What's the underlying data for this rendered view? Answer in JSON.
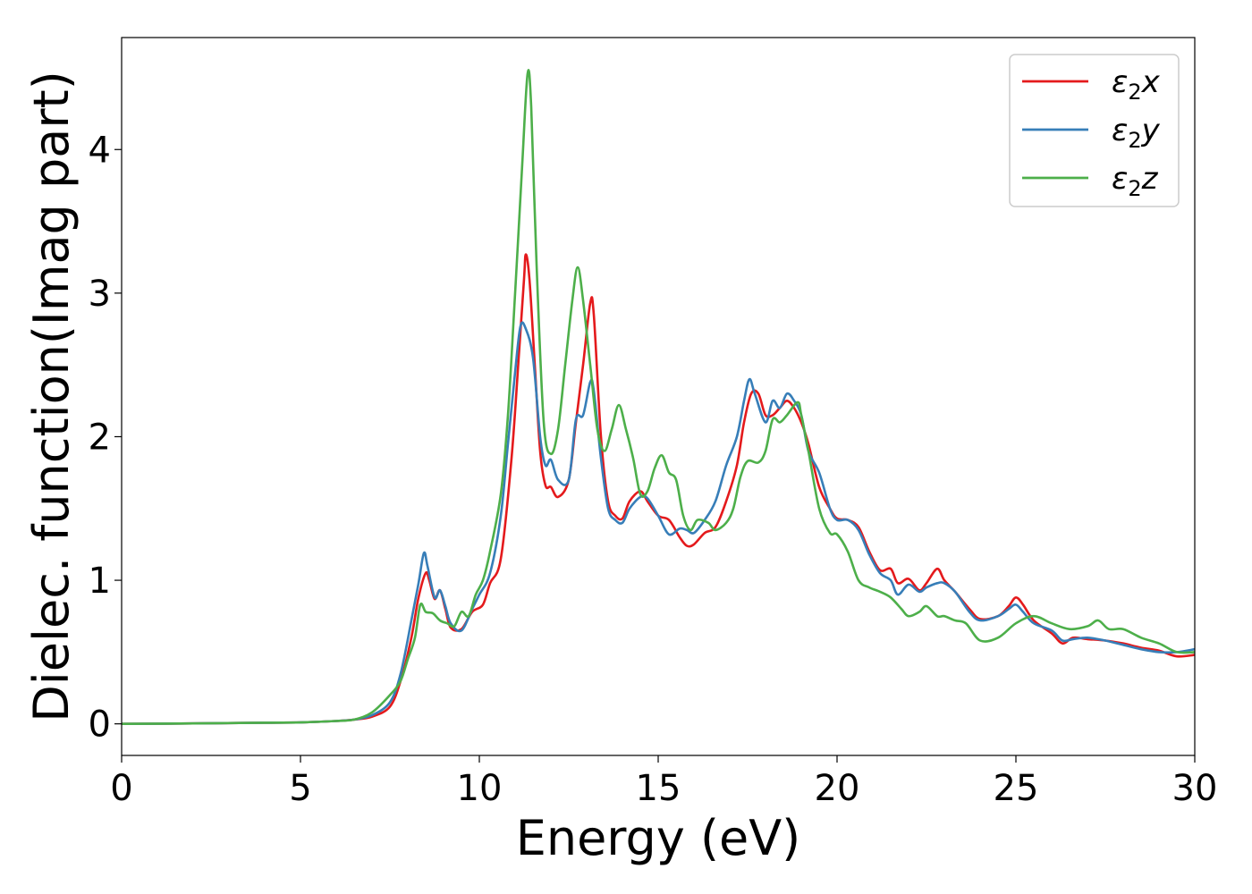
{
  "chart_data": {
    "type": "line",
    "title": "",
    "xlabel": "Energy (eV)",
    "ylabel": "Dielec. function(Imag part)",
    "xlim": [
      0,
      30
    ],
    "ylim": [
      -0.22,
      4.78
    ],
    "xticks": [
      0,
      5,
      10,
      15,
      20,
      25,
      30
    ],
    "xtick_labels": [
      "0",
      "5",
      "10",
      "15",
      "20",
      "25",
      "30"
    ],
    "yticks": [
      0,
      1,
      2,
      3,
      4
    ],
    "ytick_labels": [
      "0",
      "1",
      "2",
      "3",
      "4"
    ],
    "grid": false,
    "legend_position": "top-right",
    "series": [
      {
        "name": "ε₂x",
        "legend_base": "ε",
        "legend_sub": "2",
        "legend_var": "x",
        "color": "#e41a1c",
        "points": [
          [
            0,
            0
          ],
          [
            2,
            0.003
          ],
          [
            4,
            0.008
          ],
          [
            5,
            0.01
          ],
          [
            6,
            0.02
          ],
          [
            6.5,
            0.03
          ],
          [
            7,
            0.05
          ],
          [
            7.5,
            0.12
          ],
          [
            7.8,
            0.3
          ],
          [
            8.1,
            0.6
          ],
          [
            8.3,
            0.88
          ],
          [
            8.5,
            1.05
          ],
          [
            8.6,
            1.0
          ],
          [
            8.75,
            0.87
          ],
          [
            8.9,
            0.93
          ],
          [
            9.05,
            0.8
          ],
          [
            9.2,
            0.67
          ],
          [
            9.5,
            0.66
          ],
          [
            9.8,
            0.78
          ],
          [
            10.1,
            0.83
          ],
          [
            10.3,
            0.98
          ],
          [
            10.6,
            1.15
          ],
          [
            10.9,
            1.85
          ],
          [
            11.1,
            2.55
          ],
          [
            11.25,
            3.1
          ],
          [
            11.3,
            3.27
          ],
          [
            11.4,
            3.1
          ],
          [
            11.55,
            2.5
          ],
          [
            11.7,
            1.9
          ],
          [
            11.85,
            1.66
          ],
          [
            12.0,
            1.65
          ],
          [
            12.2,
            1.58
          ],
          [
            12.5,
            1.7
          ],
          [
            12.7,
            2.1
          ],
          [
            12.9,
            2.5
          ],
          [
            13.1,
            2.93
          ],
          [
            13.2,
            2.85
          ],
          [
            13.4,
            2.0
          ],
          [
            13.6,
            1.55
          ],
          [
            13.8,
            1.45
          ],
          [
            14.0,
            1.43
          ],
          [
            14.2,
            1.55
          ],
          [
            14.5,
            1.62
          ],
          [
            14.7,
            1.55
          ],
          [
            15.0,
            1.45
          ],
          [
            15.3,
            1.42
          ],
          [
            15.6,
            1.3
          ],
          [
            15.8,
            1.24
          ],
          [
            16.0,
            1.25
          ],
          [
            16.3,
            1.33
          ],
          [
            16.6,
            1.37
          ],
          [
            16.9,
            1.55
          ],
          [
            17.2,
            1.8
          ],
          [
            17.4,
            2.1
          ],
          [
            17.6,
            2.3
          ],
          [
            17.8,
            2.3
          ],
          [
            18.0,
            2.15
          ],
          [
            18.2,
            2.15
          ],
          [
            18.4,
            2.2
          ],
          [
            18.6,
            2.25
          ],
          [
            18.8,
            2.2
          ],
          [
            19.0,
            2.1
          ],
          [
            19.2,
            1.95
          ],
          [
            19.5,
            1.65
          ],
          [
            19.8,
            1.5
          ],
          [
            20.0,
            1.43
          ],
          [
            20.3,
            1.42
          ],
          [
            20.6,
            1.37
          ],
          [
            20.9,
            1.2
          ],
          [
            21.2,
            1.07
          ],
          [
            21.5,
            1.08
          ],
          [
            21.7,
            0.98
          ],
          [
            22.0,
            1.01
          ],
          [
            22.3,
            0.93
          ],
          [
            22.5,
            0.98
          ],
          [
            22.8,
            1.08
          ],
          [
            23.0,
            1.0
          ],
          [
            23.3,
            0.92
          ],
          [
            23.7,
            0.8
          ],
          [
            24.0,
            0.73
          ],
          [
            24.5,
            0.75
          ],
          [
            24.8,
            0.82
          ],
          [
            25.0,
            0.88
          ],
          [
            25.2,
            0.83
          ],
          [
            25.5,
            0.72
          ],
          [
            26.0,
            0.63
          ],
          [
            26.3,
            0.56
          ],
          [
            26.6,
            0.6
          ],
          [
            27.0,
            0.59
          ],
          [
            27.5,
            0.58
          ],
          [
            28.0,
            0.56
          ],
          [
            28.5,
            0.53
          ],
          [
            29.0,
            0.51
          ],
          [
            29.5,
            0.47
          ],
          [
            30,
            0.48
          ]
        ]
      },
      {
        "name": "ε₂y",
        "legend_base": "ε",
        "legend_sub": "2",
        "legend_var": "y",
        "color": "#377eb8",
        "points": [
          [
            0,
            0
          ],
          [
            2,
            0.003
          ],
          [
            4,
            0.008
          ],
          [
            5,
            0.01
          ],
          [
            6,
            0.02
          ],
          [
            6.5,
            0.03
          ],
          [
            7,
            0.06
          ],
          [
            7.5,
            0.15
          ],
          [
            7.8,
            0.35
          ],
          [
            8.1,
            0.72
          ],
          [
            8.3,
            0.98
          ],
          [
            8.45,
            1.19
          ],
          [
            8.55,
            1.1
          ],
          [
            8.75,
            0.88
          ],
          [
            8.9,
            0.93
          ],
          [
            9.05,
            0.82
          ],
          [
            9.2,
            0.7
          ],
          [
            9.5,
            0.65
          ],
          [
            9.8,
            0.8
          ],
          [
            10.0,
            0.9
          ],
          [
            10.3,
            1.05
          ],
          [
            10.6,
            1.45
          ],
          [
            10.8,
            1.95
          ],
          [
            11.0,
            2.45
          ],
          [
            11.15,
            2.77
          ],
          [
            11.3,
            2.75
          ],
          [
            11.5,
            2.55
          ],
          [
            11.7,
            2.0
          ],
          [
            11.85,
            1.8
          ],
          [
            12.0,
            1.84
          ],
          [
            12.2,
            1.7
          ],
          [
            12.5,
            1.7
          ],
          [
            12.7,
            2.12
          ],
          [
            12.9,
            2.15
          ],
          [
            13.1,
            2.38
          ],
          [
            13.2,
            2.32
          ],
          [
            13.4,
            1.85
          ],
          [
            13.6,
            1.5
          ],
          [
            13.8,
            1.42
          ],
          [
            14.0,
            1.4
          ],
          [
            14.2,
            1.5
          ],
          [
            14.5,
            1.58
          ],
          [
            14.7,
            1.57
          ],
          [
            15.0,
            1.45
          ],
          [
            15.3,
            1.32
          ],
          [
            15.6,
            1.36
          ],
          [
            15.8,
            1.35
          ],
          [
            16.0,
            1.33
          ],
          [
            16.3,
            1.42
          ],
          [
            16.6,
            1.55
          ],
          [
            16.9,
            1.8
          ],
          [
            17.2,
            2.0
          ],
          [
            17.4,
            2.25
          ],
          [
            17.55,
            2.4
          ],
          [
            17.7,
            2.3
          ],
          [
            18.0,
            2.1
          ],
          [
            18.2,
            2.25
          ],
          [
            18.4,
            2.2
          ],
          [
            18.6,
            2.3
          ],
          [
            18.8,
            2.25
          ],
          [
            19.0,
            2.15
          ],
          [
            19.2,
            1.9
          ],
          [
            19.5,
            1.75
          ],
          [
            19.8,
            1.5
          ],
          [
            20.0,
            1.42
          ],
          [
            20.3,
            1.42
          ],
          [
            20.6,
            1.35
          ],
          [
            20.9,
            1.18
          ],
          [
            21.2,
            1.05
          ],
          [
            21.5,
            1.0
          ],
          [
            21.7,
            0.9
          ],
          [
            22.0,
            0.97
          ],
          [
            22.3,
            0.92
          ],
          [
            22.5,
            0.95
          ],
          [
            22.8,
            0.98
          ],
          [
            23.0,
            0.98
          ],
          [
            23.3,
            0.92
          ],
          [
            23.7,
            0.78
          ],
          [
            24.0,
            0.72
          ],
          [
            24.5,
            0.75
          ],
          [
            24.8,
            0.8
          ],
          [
            25.0,
            0.83
          ],
          [
            25.2,
            0.78
          ],
          [
            25.5,
            0.7
          ],
          [
            26.0,
            0.65
          ],
          [
            26.3,
            0.58
          ],
          [
            26.6,
            0.59
          ],
          [
            27.0,
            0.6
          ],
          [
            27.5,
            0.58
          ],
          [
            28.0,
            0.55
          ],
          [
            28.5,
            0.52
          ],
          [
            29.0,
            0.5
          ],
          [
            29.5,
            0.5
          ],
          [
            30,
            0.52
          ]
        ]
      },
      {
        "name": "ε₂z",
        "legend_base": "ε",
        "legend_sub": "2",
        "legend_var": "z",
        "color": "#4daf4a",
        "points": [
          [
            0,
            0
          ],
          [
            2,
            0.003
          ],
          [
            4,
            0.008
          ],
          [
            5,
            0.01
          ],
          [
            6,
            0.02
          ],
          [
            6.5,
            0.03
          ],
          [
            7,
            0.08
          ],
          [
            7.5,
            0.2
          ],
          [
            7.8,
            0.3
          ],
          [
            8.0,
            0.45
          ],
          [
            8.2,
            0.6
          ],
          [
            8.35,
            0.83
          ],
          [
            8.5,
            0.78
          ],
          [
            8.7,
            0.77
          ],
          [
            8.9,
            0.72
          ],
          [
            9.1,
            0.7
          ],
          [
            9.3,
            0.68
          ],
          [
            9.5,
            0.78
          ],
          [
            9.7,
            0.75
          ],
          [
            9.9,
            0.9
          ],
          [
            10.1,
            1.0
          ],
          [
            10.3,
            1.2
          ],
          [
            10.6,
            1.6
          ],
          [
            10.8,
            2.15
          ],
          [
            11.0,
            3.0
          ],
          [
            11.2,
            3.9
          ],
          [
            11.35,
            4.53
          ],
          [
            11.45,
            4.3
          ],
          [
            11.6,
            3.2
          ],
          [
            11.8,
            2.1
          ],
          [
            12.0,
            1.88
          ],
          [
            12.2,
            2.05
          ],
          [
            12.4,
            2.5
          ],
          [
            12.6,
            2.95
          ],
          [
            12.75,
            3.18
          ],
          [
            12.9,
            2.95
          ],
          [
            13.1,
            2.5
          ],
          [
            13.3,
            2.05
          ],
          [
            13.5,
            1.9
          ],
          [
            13.7,
            2.05
          ],
          [
            13.9,
            2.22
          ],
          [
            14.1,
            2.05
          ],
          [
            14.3,
            1.85
          ],
          [
            14.5,
            1.6
          ],
          [
            14.7,
            1.62
          ],
          [
            14.9,
            1.78
          ],
          [
            15.1,
            1.87
          ],
          [
            15.3,
            1.75
          ],
          [
            15.5,
            1.7
          ],
          [
            15.7,
            1.45
          ],
          [
            15.9,
            1.35
          ],
          [
            16.1,
            1.42
          ],
          [
            16.4,
            1.4
          ],
          [
            16.6,
            1.35
          ],
          [
            16.9,
            1.4
          ],
          [
            17.1,
            1.5
          ],
          [
            17.3,
            1.72
          ],
          [
            17.5,
            1.83
          ],
          [
            17.8,
            1.82
          ],
          [
            18.0,
            1.9
          ],
          [
            18.2,
            2.12
          ],
          [
            18.4,
            2.1
          ],
          [
            18.6,
            2.15
          ],
          [
            18.9,
            2.24
          ],
          [
            19.0,
            2.15
          ],
          [
            19.2,
            1.9
          ],
          [
            19.5,
            1.5
          ],
          [
            19.8,
            1.33
          ],
          [
            20.0,
            1.32
          ],
          [
            20.3,
            1.2
          ],
          [
            20.6,
            1.0
          ],
          [
            20.9,
            0.95
          ],
          [
            21.2,
            0.92
          ],
          [
            21.5,
            0.88
          ],
          [
            21.8,
            0.8
          ],
          [
            22.0,
            0.75
          ],
          [
            22.3,
            0.78
          ],
          [
            22.5,
            0.82
          ],
          [
            22.8,
            0.75
          ],
          [
            23.0,
            0.75
          ],
          [
            23.3,
            0.72
          ],
          [
            23.6,
            0.7
          ],
          [
            24.0,
            0.58
          ],
          [
            24.5,
            0.6
          ],
          [
            25.0,
            0.7
          ],
          [
            25.5,
            0.75
          ],
          [
            26.0,
            0.7
          ],
          [
            26.5,
            0.66
          ],
          [
            27.0,
            0.68
          ],
          [
            27.3,
            0.72
          ],
          [
            27.6,
            0.66
          ],
          [
            28.0,
            0.66
          ],
          [
            28.5,
            0.6
          ],
          [
            29.0,
            0.56
          ],
          [
            29.5,
            0.5
          ],
          [
            30,
            0.5
          ]
        ]
      }
    ]
  }
}
